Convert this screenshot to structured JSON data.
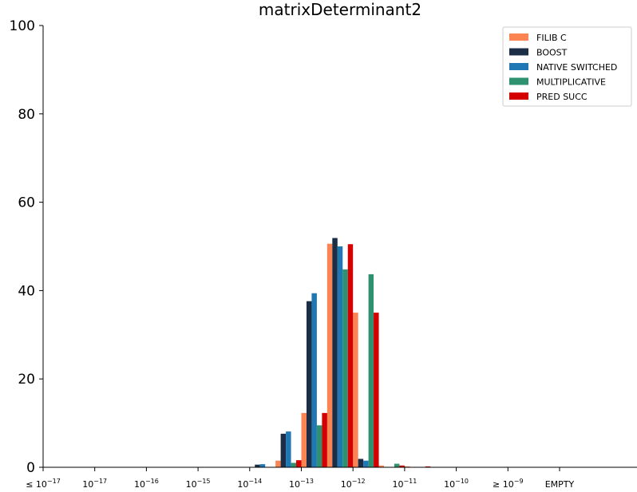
{
  "chart_data": {
    "type": "bar",
    "title": "matrixDeterminant2",
    "xlabel": "",
    "ylabel": "",
    "ylim": [
      0,
      100
    ],
    "yticks": [
      0,
      20,
      40,
      60,
      80,
      100
    ],
    "xticks": [
      {
        "prefix": "≤ ",
        "base": "10",
        "exp": "−17"
      },
      {
        "prefix": "",
        "base": "10",
        "exp": "−17"
      },
      {
        "prefix": "",
        "base": "10",
        "exp": "−16"
      },
      {
        "prefix": "",
        "base": "10",
        "exp": "−15"
      },
      {
        "prefix": "",
        "base": "10",
        "exp": "−14"
      },
      {
        "prefix": "",
        "base": "10",
        "exp": "−13"
      },
      {
        "prefix": "",
        "base": "10",
        "exp": "−12"
      },
      {
        "prefix": "",
        "base": "10",
        "exp": "−11"
      },
      {
        "prefix": "",
        "base": "10",
        "exp": "−10"
      },
      {
        "prefix": "≥ ",
        "base": "10",
        "exp": "−9"
      },
      {
        "prefix": "EMPTY",
        "base": "",
        "exp": ""
      }
    ],
    "legend_position": "top-right",
    "grid": false,
    "bins_per_decade": 2,
    "series": [
      {
        "name": "FILIB C",
        "color": "#FC8452",
        "values": [
          [
            -13.5,
            1.5
          ],
          [
            -13.0,
            12.3
          ],
          [
            -12.5,
            50.6
          ],
          [
            -12.0,
            35.0
          ],
          [
            -11.5,
            0.4
          ],
          [
            -11.0,
            0.2
          ]
        ]
      },
      {
        "name": "BOOST",
        "color": "#1B2E45",
        "values": [
          [
            -14.0,
            0.6
          ],
          [
            -13.5,
            7.6
          ],
          [
            -13.0,
            37.6
          ],
          [
            -12.5,
            51.9
          ],
          [
            -12.0,
            1.9
          ]
        ]
      },
      {
        "name": "NATIVE SWITCHED",
        "color": "#1F77B4",
        "values": [
          [
            -14.0,
            0.7
          ],
          [
            -13.5,
            8.1
          ],
          [
            -13.0,
            39.4
          ],
          [
            -12.5,
            50.0
          ],
          [
            -12.0,
            1.5
          ]
        ]
      },
      {
        "name": "MULTIPLICATIVE",
        "color": "#2E9270",
        "values": [
          [
            -13.5,
            1.0
          ],
          [
            -13.0,
            9.5
          ],
          [
            -12.5,
            44.8
          ],
          [
            -12.0,
            43.7
          ],
          [
            -11.5,
            0.8
          ]
        ]
      },
      {
        "name": "PRED SUCC",
        "color": "#D40000",
        "values": [
          [
            -13.5,
            1.6
          ],
          [
            -13.0,
            12.3
          ],
          [
            -12.5,
            50.5
          ],
          [
            -12.0,
            35.0
          ],
          [
            -11.5,
            0.4
          ],
          [
            -11.0,
            0.2
          ]
        ]
      }
    ]
  }
}
